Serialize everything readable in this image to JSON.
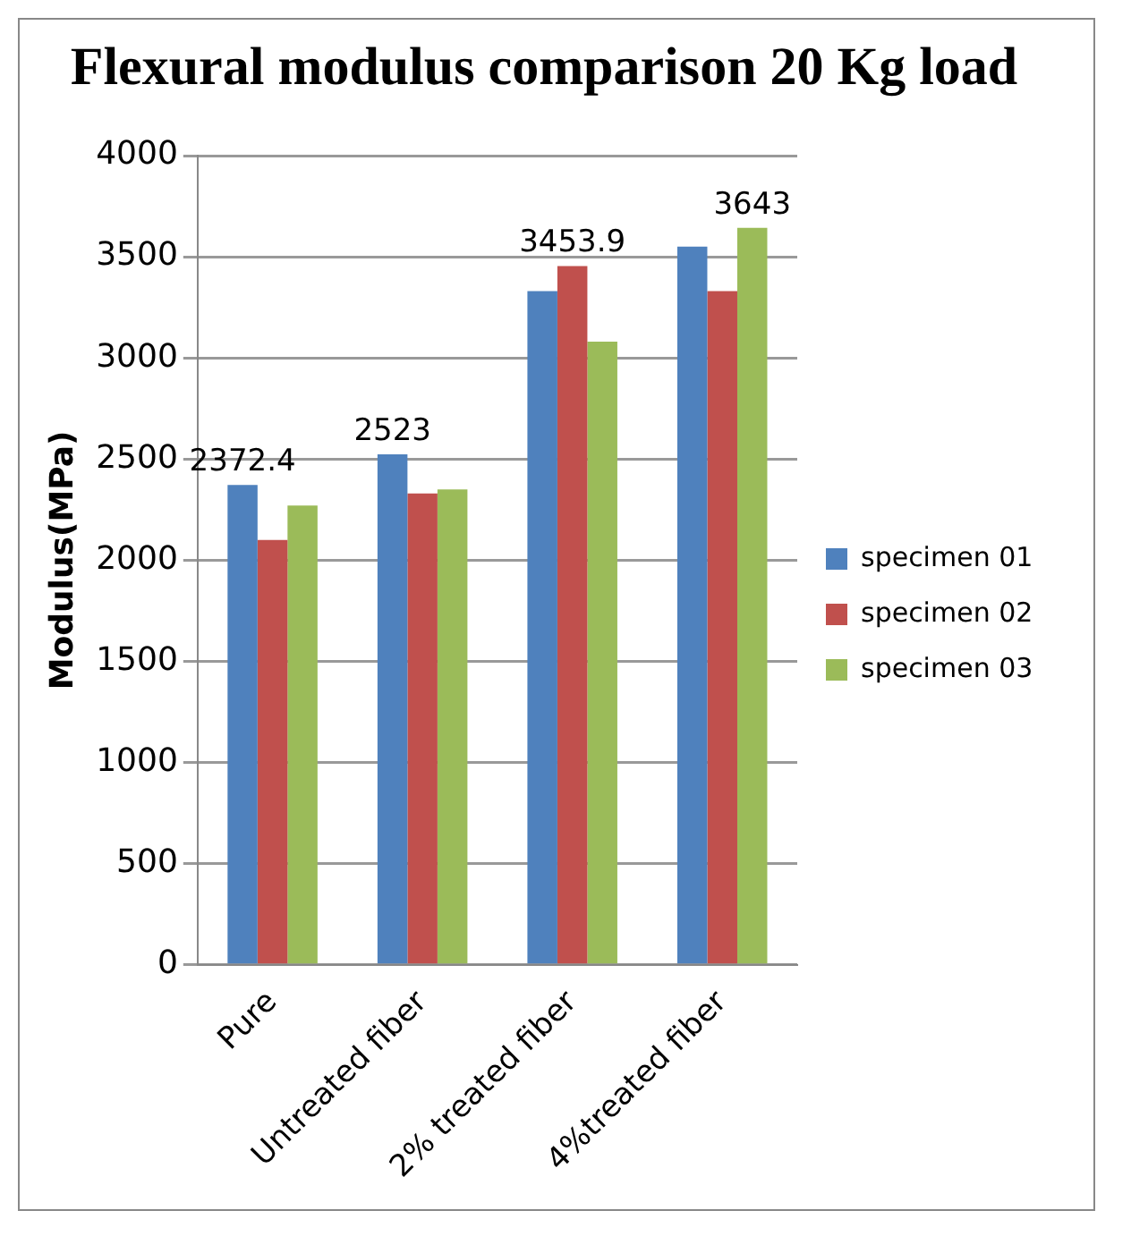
{
  "chart_data": {
    "type": "bar",
    "title": "Flexural modulus comparison 20 Kg load",
    "ylabel": "Modulus(MPa)",
    "categories": [
      "Pure",
      "Untreated fiber",
      "2% treated fiber",
      "4%treated fiber"
    ],
    "series": [
      {
        "name": "specimen 01",
        "color": "#4f81bd",
        "values": [
          2372.4,
          2523,
          3330,
          3550
        ],
        "value_labels": [
          "2372.4",
          "2523",
          null,
          null
        ]
      },
      {
        "name": "specimen 02",
        "color": "#c0504d",
        "values": [
          2100,
          2330,
          3453.9,
          3330
        ],
        "value_labels": [
          null,
          null,
          "3453.9",
          null
        ]
      },
      {
        "name": "specimen 03",
        "color": "#9bbb59",
        "values": [
          2270,
          2350,
          3080,
          3643
        ],
        "value_labels": [
          null,
          null,
          null,
          "3643"
        ]
      }
    ],
    "ylim": [
      0,
      4000
    ],
    "yticks": [
      0,
      500,
      1000,
      1500,
      2000,
      2500,
      3000,
      3500,
      4000
    ],
    "grid": "y",
    "legend": "right"
  }
}
